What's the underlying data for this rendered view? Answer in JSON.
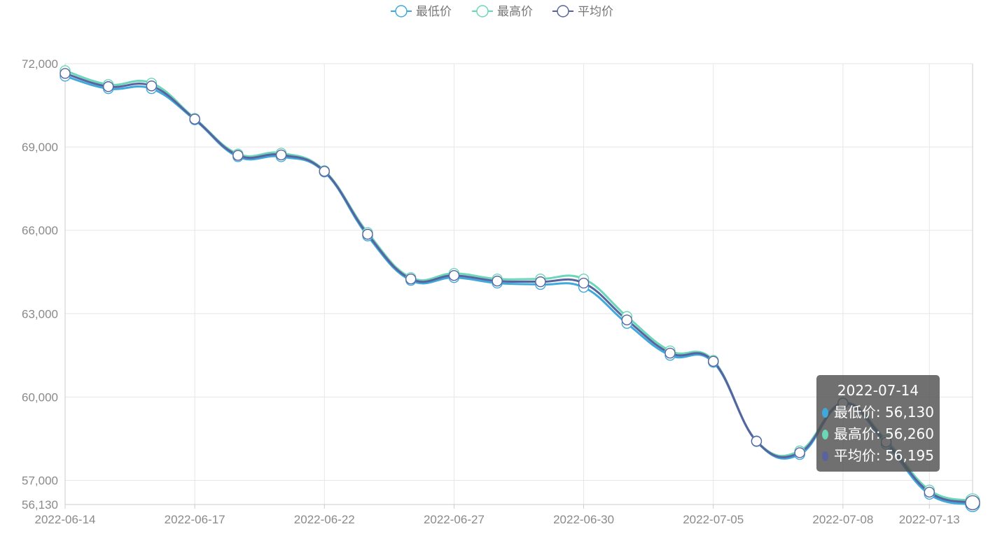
{
  "chart_data": {
    "type": "line",
    "smooth": true,
    "x": [
      "2022-06-14",
      "2022-06-15",
      "2022-06-16",
      "2022-06-17",
      "2022-06-18",
      "2022-06-19",
      "2022-06-22",
      "2022-06-23",
      "2022-06-24",
      "2022-06-27",
      "2022-06-28",
      "2022-06-29",
      "2022-06-30",
      "2022-07-01",
      "2022-07-04",
      "2022-07-05",
      "2022-07-06",
      "2022-07-07",
      "2022-07-08",
      "2022-07-11",
      "2022-07-13",
      "2022-07-14"
    ],
    "x_tick_labels": [
      "2022-06-14",
      "2022-06-17",
      "2022-06-22",
      "2022-06-27",
      "2022-06-30",
      "2022-07-05",
      "2022-07-08",
      "2022-07-13"
    ],
    "y_tick_labels": [
      "56,130",
      "57,000",
      "60,000",
      "63,000",
      "66,000",
      "69,000",
      "72,000"
    ],
    "ylim": [
      56130,
      72000
    ],
    "grid": true,
    "legend_position": "top-center",
    "series": [
      {
        "name": "最低价",
        "color": "#3fa9dc",
        "values": [
          71550,
          71100,
          71100,
          69980,
          68650,
          68650,
          68100,
          65800,
          64200,
          64300,
          64100,
          64050,
          63950,
          62650,
          61500,
          61250,
          58400,
          57930,
          59760,
          58300,
          56500,
          56130
        ]
      },
      {
        "name": "最高价",
        "color": "#6ad7b8",
        "values": [
          71750,
          71250,
          71300,
          70030,
          68750,
          68780,
          68150,
          65920,
          64300,
          64450,
          64250,
          64250,
          64250,
          62900,
          61660,
          61320,
          58420,
          58060,
          59800,
          58450,
          56650,
          56260
        ]
      },
      {
        "name": "平均价",
        "color": "#5a63a0",
        "values": [
          71650,
          71175,
          71200,
          70005,
          68700,
          68715,
          68125,
          65860,
          64250,
          64375,
          64175,
          64150,
          64100,
          62775,
          61580,
          61285,
          58410,
          57995,
          59780,
          58375,
          56575,
          56195
        ]
      }
    ],
    "tooltip": {
      "title": "2022-07-14",
      "rows": [
        {
          "label": "最低价: 56,130",
          "color": "#3fa9dc"
        },
        {
          "label": "最高价: 56,260",
          "color": "#6ad7b8"
        },
        {
          "label": "平均价: 56,195",
          "color": "#5a63a0"
        }
      ]
    }
  }
}
